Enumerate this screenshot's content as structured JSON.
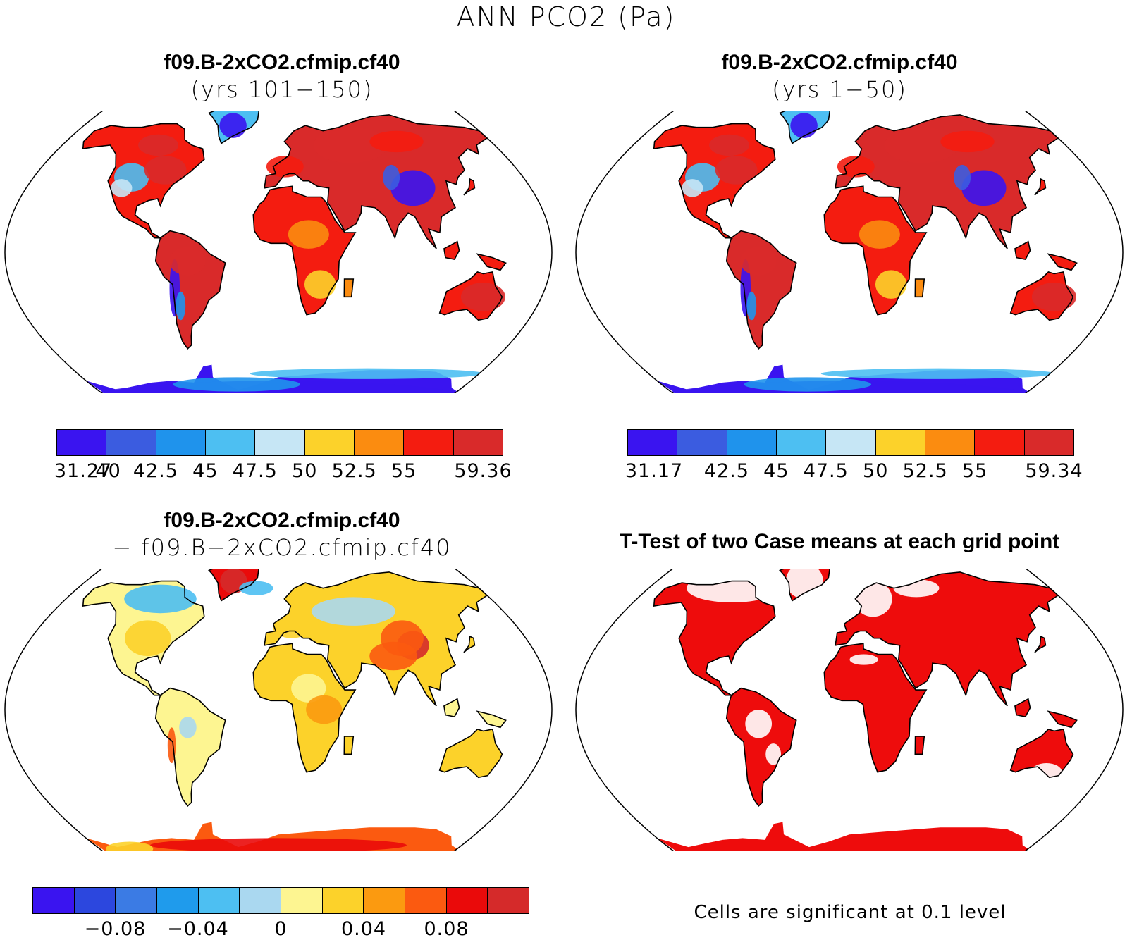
{
  "title": "ANN PCO2 (Pa)",
  "panels": [
    {
      "id": "case1",
      "title_bold": "f09.B-2xCO2.cfmip.cf40",
      "title_sub": "(yrs 101−150)",
      "colors": [
        "#3a14f0",
        "#3b5ce0",
        "#1f93ec",
        "#4dbff2",
        "#c6e6f5",
        "#fcd22a",
        "#fb8c10",
        "#f41c10",
        "#d92a2a"
      ],
      "labels": [
        "31.27",
        "40",
        "42.5",
        "45",
        "47.5",
        "50",
        "52.5",
        "55",
        "59.36"
      ]
    },
    {
      "id": "case2",
      "title_bold": "f09.B-2xCO2.cfmip.cf40",
      "title_sub": "(yrs 1−50)",
      "colors": [
        "#3a14f0",
        "#3b5ce0",
        "#1f93ec",
        "#4dbff2",
        "#c6e6f5",
        "#fcd22a",
        "#fb8c10",
        "#f41c10",
        "#d92a2a"
      ],
      "labels": [
        "31.17",
        "42.5",
        "45",
        "47.5",
        "50",
        "52.5",
        "55",
        "59.34"
      ]
    },
    {
      "id": "diff",
      "title_bold": "f09.B-2xCO2.cfmip.cf40",
      "title_sub": "− f09.B−2xCO2.cfmip.cf40",
      "colors": [
        "#3a14f0",
        "#2c47de",
        "#3b7be4",
        "#1f9bec",
        "#4dbff2",
        "#aad8f0",
        "#fdf591",
        "#fcd22a",
        "#fb9a10",
        "#fb5a10",
        "#ea0a0a",
        "#d52a2a"
      ],
      "labels": [
        "−0.08",
        "−0.04",
        "0",
        "0.04",
        "0.08"
      ]
    },
    {
      "id": "ttest",
      "title_bold": "T-Test of two Case means at each grid point",
      "note": "Cells are significant at 0.1 level",
      "sig_color": "#ee0c0c"
    }
  ]
}
